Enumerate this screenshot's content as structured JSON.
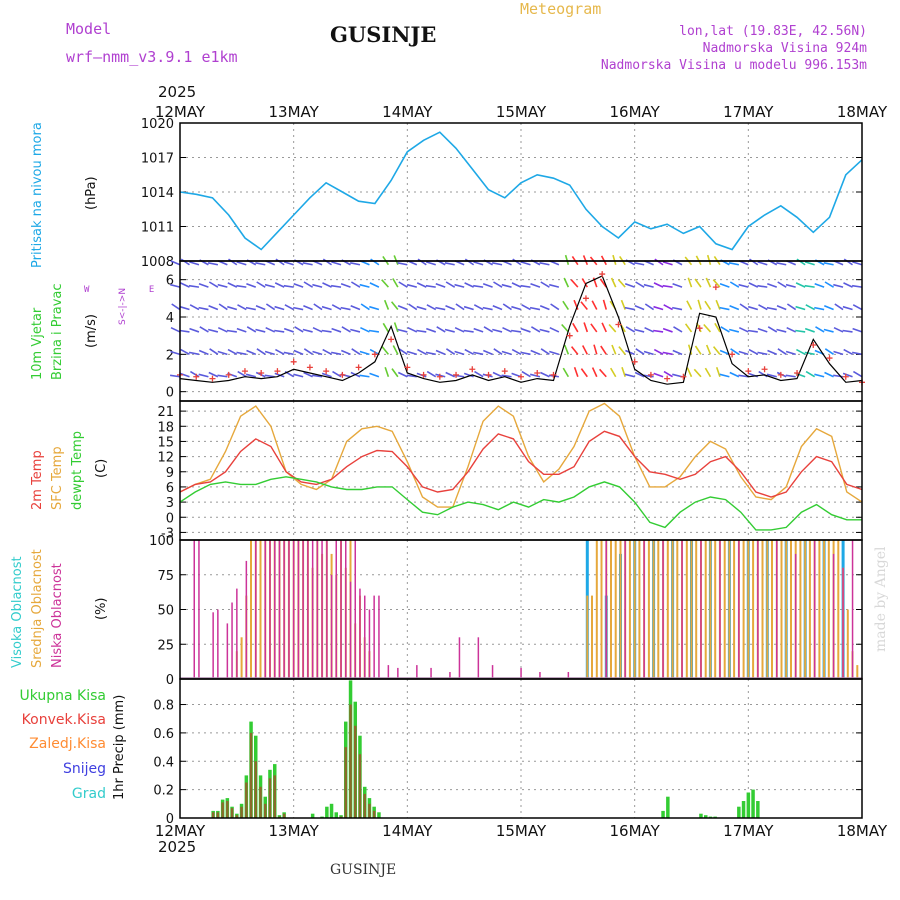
{
  "header": {
    "model_label": "Model",
    "model_name": "wrf—nmm_v3.9.1  e1km",
    "title": "GUSINJE",
    "subtitle": "Meteogram",
    "location": "lon,lat (19.83E, 42.56N)",
    "elevation": "Nadmorska Visina 924m",
    "model_elevation": "Nadmorska Visina u modelu 996.153m",
    "year": "2025",
    "footer_title": "GUSINJE",
    "credit": "made by Angel"
  },
  "colors": {
    "pressure": "#1ea8e6",
    "temp2m": "#e8413c",
    "sfc_temp": "#e6a83c",
    "dewpt": "#33cc33",
    "wind_speed": "#000000",
    "gust": "#e8413c",
    "cloud_high": "#1ea8e6",
    "cloud_mid": "#e6a83c",
    "cloud_low": "#cc3399",
    "precip_total": "#33cc33",
    "precip_conv": "#e8413c",
    "precip_frozen": "#ff8c33",
    "snow": "#4040e0",
    "hail": "#33cccc",
    "label_purple": "#b040d0"
  },
  "chart_data": [
    {
      "type": "line",
      "panel": "pressure",
      "x_labels": [
        "12MAY",
        "13MAY",
        "14MAY",
        "15MAY",
        "16MAY",
        "17MAY",
        "18MAY"
      ],
      "ylabel": "Pritisak na nivou mora",
      "unit": "(hPa)",
      "yticks": [
        1008,
        1011,
        1014,
        1017,
        1020
      ],
      "ylim": [
        1008,
        1020
      ],
      "series": [
        {
          "name": "Pritisak na nivou mora",
          "values": [
            1014,
            1013.8,
            1013.5,
            1012,
            1010,
            1009,
            1010.5,
            1012,
            1013.5,
            1014.8,
            1014,
            1013.2,
            1013,
            1015,
            1017.5,
            1018.5,
            1019.2,
            1017.8,
            1016,
            1014.2,
            1013.5,
            1014.8,
            1015.5,
            1015.2,
            1014.6,
            1012.5,
            1011,
            1010,
            1011.4,
            1010.8,
            1011.2,
            1010.4,
            1011,
            1009.5,
            1009,
            1011,
            1012,
            1012.8,
            1011.8,
            1010.5,
            1011.8,
            1015.5,
            1016.8
          ]
        }
      ]
    },
    {
      "type": "line",
      "panel": "wind",
      "ylabel": "10m Vjetar Brzina i Pravac",
      "unit": "(m/s)",
      "direction_key": [
        "N",
        "E",
        "S",
        "W"
      ],
      "yticks": [
        0,
        2,
        4,
        6
      ],
      "ylim": [
        -0.5,
        7
      ],
      "series": [
        {
          "name": "speed",
          "values": [
            0.7,
            0.6,
            0.5,
            0.6,
            0.8,
            0.7,
            0.8,
            1.2,
            1.0,
            0.8,
            0.6,
            1.0,
            1.6,
            3.5,
            1.0,
            0.7,
            0.5,
            0.6,
            0.9,
            0.6,
            0.8,
            0.5,
            0.7,
            0.6,
            3.5,
            5.8,
            6.2,
            4.0,
            1.2,
            0.6,
            0.4,
            0.5,
            4.2,
            4.0,
            1.5,
            0.8,
            0.9,
            0.6,
            0.7,
            2.8,
            1.5,
            0.5,
            0.6
          ]
        },
        {
          "name": "gust",
          "values": [
            0.9,
            0.8,
            0.7,
            0.9,
            1.1,
            1.0,
            1.1,
            1.6,
            1.3,
            1.1,
            0.9,
            1.3,
            2.0,
            2.8,
            1.3,
            0.9,
            0.8,
            0.9,
            1.2,
            0.9,
            1.1,
            0.8,
            1.0,
            0.9,
            3.0,
            5.0,
            6.3,
            3.6,
            1.6,
            0.9,
            0.7,
            0.8,
            3.4,
            5.6,
            2.0,
            1.1,
            1.2,
            0.9,
            1.0,
            2.5,
            1.8,
            0.8,
            0.5
          ]
        }
      ]
    },
    {
      "type": "line",
      "panel": "temperature",
      "ylabel": "2m Temp SFC Temp dewpt Temp",
      "unit": "(C)",
      "yticks": [
        -3,
        0,
        3,
        6,
        9,
        12,
        15,
        18,
        21
      ],
      "ylim": [
        -4.5,
        23
      ],
      "series": [
        {
          "name": "2m Temp",
          "values": [
            5,
            6.5,
            7,
            9,
            13,
            15.5,
            14,
            9,
            7,
            6.5,
            7.5,
            10,
            12,
            13.2,
            13,
            10,
            6,
            5,
            5.5,
            9,
            13.5,
            16.5,
            15.5,
            11,
            8.5,
            8.5,
            10,
            15,
            17,
            16,
            12,
            9,
            8.5,
            7.5,
            8.5,
            11,
            12,
            9,
            5,
            4,
            5,
            9,
            12,
            11,
            6.5,
            5.5
          ]
        },
        {
          "name": "SFC Temp",
          "values": [
            5,
            6.5,
            7.5,
            13,
            20,
            22,
            18,
            9,
            6.5,
            5.5,
            7.5,
            15,
            17.5,
            18,
            17,
            11,
            4,
            2,
            2,
            10,
            19,
            22,
            20,
            12,
            7,
            9.5,
            14,
            21,
            22.5,
            20,
            12,
            6,
            6,
            8,
            12,
            15,
            13.5,
            8,
            4,
            3.5,
            6,
            14,
            17.5,
            16,
            5,
            3
          ]
        },
        {
          "name": "dewpt Temp",
          "values": [
            3,
            5,
            6.5,
            7,
            6.5,
            6.5,
            7.5,
            8,
            7.5,
            7,
            6,
            5.5,
            5.5,
            6,
            6,
            3.5,
            1,
            0.5,
            2,
            3,
            2.5,
            1.5,
            3,
            2,
            3.5,
            3,
            4,
            6,
            7,
            6,
            3,
            -1,
            -2,
            1,
            3,
            4,
            3.5,
            1,
            -2.5,
            -2.5,
            -2,
            1,
            2.5,
            0.5,
            -0.5,
            -0.5
          ]
        }
      ]
    },
    {
      "type": "bar",
      "panel": "cloud",
      "ylabel": "Visoka Oblacnost Srednja Oblacnost Niska Oblacnost",
      "unit": "(%)",
      "yticks": [
        0,
        25,
        50,
        75,
        100
      ],
      "ylim": [
        0,
        100
      ],
      "series": [
        {
          "name": "Visoka Oblacnost",
          "x_hours": [
            86,
            90,
            93,
            96,
            100,
            104,
            108,
            112,
            116,
            120,
            124,
            128,
            132,
            136,
            140
          ],
          "values": [
            100,
            60,
            90,
            100,
            100,
            100,
            100,
            100,
            100,
            100,
            100,
            100,
            100,
            100,
            100
          ]
        },
        {
          "name": "Srednja Oblacnost",
          "x_hours": [
            12,
            13,
            14,
            15,
            16,
            17,
            18,
            19,
            20,
            21,
            22,
            23,
            24,
            25,
            26,
            27,
            28,
            29,
            30,
            31,
            32,
            33,
            34,
            35,
            36,
            37,
            38,
            39,
            40,
            86,
            87,
            88,
            89,
            90,
            91,
            92,
            93,
            94,
            95,
            96,
            97,
            98,
            99,
            100,
            101,
            102,
            103,
            104,
            105,
            106,
            107,
            108,
            109,
            110,
            111,
            112,
            113,
            114,
            115,
            116,
            117,
            118,
            119,
            120,
            121,
            122,
            123,
            124,
            125,
            126,
            127,
            128,
            129,
            130,
            131,
            132,
            133,
            134,
            135,
            136,
            137,
            138,
            139,
            140,
            141,
            142,
            143
          ],
          "values": [
            20,
            30,
            60,
            100,
            100,
            100,
            100,
            100,
            100,
            100,
            100,
            100,
            100,
            100,
            100,
            100,
            80,
            100,
            90,
            100,
            90,
            75,
            100,
            80,
            100,
            40,
            60,
            30,
            20,
            60,
            60,
            100,
            100,
            100,
            100,
            100,
            100,
            100,
            100,
            100,
            100,
            100,
            100,
            100,
            100,
            100,
            100,
            100,
            100,
            100,
            100,
            100,
            100,
            100,
            100,
            100,
            100,
            100,
            100,
            100,
            100,
            100,
            100,
            100,
            100,
            100,
            100,
            100,
            100,
            100,
            100,
            100,
            100,
            100,
            100,
            100,
            100,
            100,
            100,
            100,
            100,
            100,
            100,
            80,
            50,
            20,
            10
          ]
        },
        {
          "name": "Niska Oblacnost",
          "x_hours": [
            3,
            4,
            7,
            8,
            10,
            11,
            12,
            14,
            16,
            18,
            19,
            20,
            21,
            22,
            23,
            24,
            25,
            26,
            27,
            28,
            29,
            30,
            31,
            32,
            33,
            34,
            35,
            36,
            37,
            38,
            39,
            40,
            41,
            42,
            44,
            46,
            50,
            53,
            57,
            59,
            63,
            66,
            72,
            76,
            82,
            90,
            94,
            98,
            102,
            106,
            110,
            114,
            118,
            122,
            126,
            130,
            134,
            138,
            140,
            142
          ],
          "values": [
            100,
            100,
            48,
            50,
            40,
            55,
            65,
            85,
            100,
            100,
            100,
            100,
            100,
            100,
            100,
            100,
            100,
            100,
            100,
            100,
            100,
            100,
            100,
            75,
            100,
            100,
            100,
            70,
            100,
            65,
            60,
            50,
            60,
            60,
            10,
            8,
            10,
            8,
            5,
            30,
            30,
            10,
            8,
            5,
            5,
            100,
            100,
            100,
            100,
            100,
            100,
            100,
            100,
            100,
            100,
            90,
            100,
            90,
            80,
            100
          ]
        }
      ]
    },
    {
      "type": "bar",
      "panel": "precip",
      "ylabel": "1hr Precip (mm)",
      "legend": [
        "Ukupna Kisa",
        "Konvek.Kisa",
        "Zaledj.Kisa",
        "Snijeg",
        "Grad"
      ],
      "yticks": [
        0,
        0.2,
        0.4,
        0.6,
        0.8
      ],
      "ylim": [
        0,
        0.98
      ],
      "series": [
        {
          "name": "Ukupna Kisa",
          "x_hours": [
            7,
            8,
            9,
            10,
            11,
            12,
            13,
            14,
            15,
            16,
            17,
            18,
            19,
            20,
            21,
            22,
            28,
            30,
            31,
            32,
            33,
            34,
            35,
            36,
            37,
            38,
            39,
            40,
            41,
            42,
            102,
            103,
            110,
            111,
            112,
            113,
            118,
            119,
            120,
            121,
            122
          ],
          "values": [
            0.05,
            0.05,
            0.13,
            0.14,
            0.08,
            0.03,
            0.1,
            0.3,
            0.68,
            0.58,
            0.3,
            0.15,
            0.34,
            0.38,
            0.02,
            0.04,
            0.03,
            0.01,
            0.08,
            0.1,
            0.04,
            0.02,
            0.68,
            0.97,
            0.82,
            0.58,
            0.22,
            0.14,
            0.08,
            0.04,
            0.05,
            0.15,
            0.03,
            0.02,
            0.01,
            0.01,
            0.08,
            0.12,
            0.18,
            0.2,
            0.12
          ]
        },
        {
          "name": "Konvek.Kisa",
          "x_hours": [
            7,
            8,
            9,
            10,
            11,
            12,
            13,
            14,
            15,
            16,
            17,
            18,
            19,
            20,
            21,
            22,
            34,
            35,
            36,
            37,
            38,
            39,
            40,
            41
          ],
          "values": [
            0.04,
            0.04,
            0.11,
            0.12,
            0.07,
            0.02,
            0.08,
            0.25,
            0.6,
            0.4,
            0.22,
            0.1,
            0.28,
            0.3,
            0.01,
            0.03,
            0.01,
            0.5,
            0.8,
            0.65,
            0.45,
            0.17,
            0.1,
            0.05
          ]
        }
      ]
    }
  ]
}
